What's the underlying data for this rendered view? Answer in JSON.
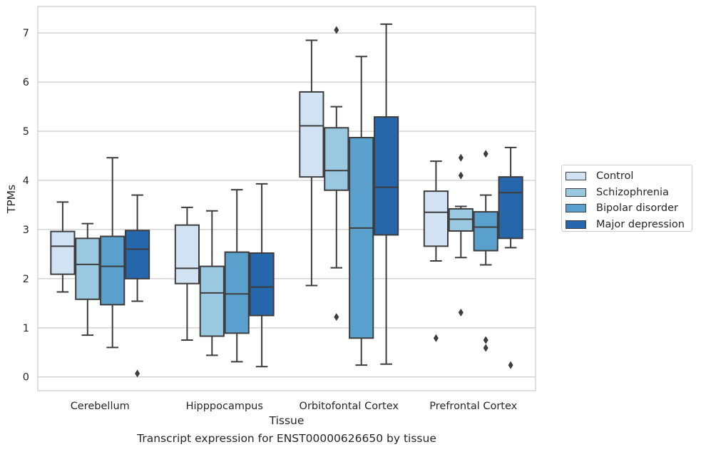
{
  "caption": "Transcript expression for ENST00000626650 by tissue",
  "chart_data": {
    "type": "box",
    "xlabel": "Tissue",
    "ylabel": "TPMs",
    "ylim": [
      -0.28,
      7.54
    ],
    "yticks": [
      0,
      1,
      2,
      3,
      4,
      5,
      6,
      7
    ],
    "grid": true,
    "legend_position": "right",
    "categories": [
      "Cerebellum",
      "Hipppocampus",
      "Orbitofontal Cortex",
      "Prefrontal Cortex"
    ],
    "series": [
      {
        "name": "Control",
        "color": "#d1e2f2",
        "boxes": [
          {
            "whisker_low": 1.73,
            "q1": 2.09,
            "median": 2.66,
            "q3": 2.96,
            "whisker_high": 3.56,
            "outliers": []
          },
          {
            "whisker_low": 0.75,
            "q1": 1.9,
            "median": 2.21,
            "q3": 3.09,
            "whisker_high": 3.45,
            "outliers": []
          },
          {
            "whisker_low": 1.86,
            "q1": 4.07,
            "median": 5.11,
            "q3": 5.8,
            "whisker_high": 6.85,
            "outliers": []
          },
          {
            "whisker_low": 2.36,
            "q1": 2.66,
            "median": 3.35,
            "q3": 3.78,
            "whisker_high": 4.39,
            "outliers": [
              0.79
            ]
          }
        ]
      },
      {
        "name": "Schizophrenia",
        "color": "#9ac8e0",
        "boxes": [
          {
            "whisker_low": 0.85,
            "q1": 1.58,
            "median": 2.29,
            "q3": 2.82,
            "whisker_high": 3.12,
            "outliers": []
          },
          {
            "whisker_low": 0.44,
            "q1": 0.83,
            "median": 1.71,
            "q3": 2.25,
            "whisker_high": 3.38,
            "outliers": []
          },
          {
            "whisker_low": 2.22,
            "q1": 3.8,
            "median": 4.2,
            "q3": 5.07,
            "whisker_high": 5.5,
            "outliers": [
              1.22,
              7.06
            ]
          },
          {
            "whisker_low": 2.43,
            "q1": 2.97,
            "median": 3.21,
            "q3": 3.42,
            "whisker_high": 3.47,
            "outliers": [
              1.31,
              4.1,
              4.46
            ]
          }
        ]
      },
      {
        "name": "Bipolar disorder",
        "color": "#5aa0cd",
        "boxes": [
          {
            "whisker_low": 0.6,
            "q1": 1.47,
            "median": 2.25,
            "q3": 2.86,
            "whisker_high": 4.46,
            "outliers": []
          },
          {
            "whisker_low": 0.31,
            "q1": 0.89,
            "median": 1.69,
            "q3": 2.54,
            "whisker_high": 3.81,
            "outliers": []
          },
          {
            "whisker_low": 0.24,
            "q1": 0.79,
            "median": 3.03,
            "q3": 4.87,
            "whisker_high": 6.52,
            "outliers": []
          },
          {
            "whisker_low": 2.28,
            "q1": 2.57,
            "median": 3.05,
            "q3": 3.36,
            "whisker_high": 3.7,
            "outliers": [
              0.59,
              0.75,
              4.54
            ]
          }
        ]
      },
      {
        "name": "Major depression",
        "color": "#2666ab",
        "boxes": [
          {
            "whisker_low": 1.54,
            "q1": 2.0,
            "median": 2.6,
            "q3": 2.98,
            "whisker_high": 3.7,
            "outliers": [
              0.07
            ]
          },
          {
            "whisker_low": 0.21,
            "q1": 1.25,
            "median": 1.83,
            "q3": 2.52,
            "whisker_high": 3.93,
            "outliers": []
          },
          {
            "whisker_low": 0.26,
            "q1": 2.89,
            "median": 3.86,
            "q3": 5.29,
            "whisker_high": 7.18,
            "outliers": []
          },
          {
            "whisker_low": 2.63,
            "q1": 2.82,
            "median": 3.75,
            "q3": 4.07,
            "whisker_high": 4.67,
            "outliers": [
              0.24
            ]
          }
        ]
      }
    ]
  }
}
